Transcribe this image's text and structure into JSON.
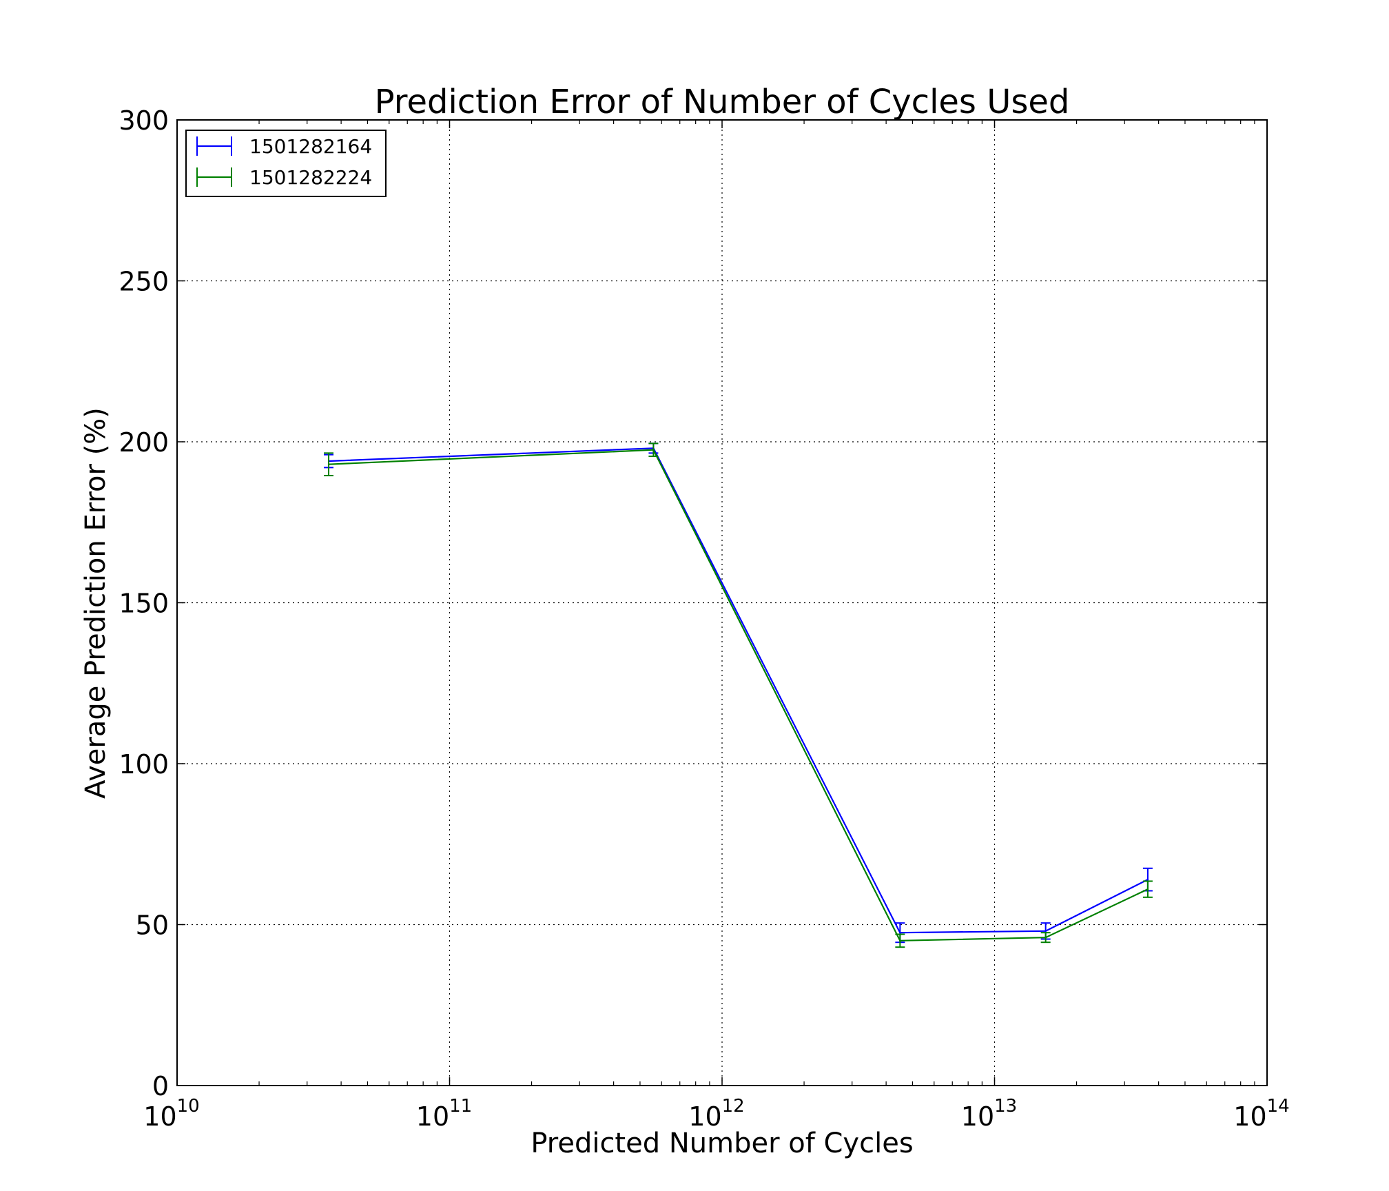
{
  "chart_data": {
    "type": "line",
    "title": "Prediction Error of Number of Cycles Used",
    "xlabel": "Predicted Number of Cycles",
    "ylabel": "Average Prediction Error (%)",
    "xscale": "log",
    "xlim": [
      10000000000,
      100000000000000
    ],
    "ylim": [
      0,
      300
    ],
    "x_ticks": [
      {
        "base": "10",
        "exp": "10",
        "value": 10000000000
      },
      {
        "base": "10",
        "exp": "11",
        "value": 100000000000
      },
      {
        "base": "10",
        "exp": "12",
        "value": 1000000000000
      },
      {
        "base": "10",
        "exp": "13",
        "value": 10000000000000
      },
      {
        "base": "10",
        "exp": "14",
        "value": 100000000000000
      }
    ],
    "y_ticks": [
      {
        "label": "0",
        "value": 0
      },
      {
        "label": "50",
        "value": 50
      },
      {
        "label": "100",
        "value": 100
      },
      {
        "label": "150",
        "value": 150
      },
      {
        "label": "200",
        "value": 200
      },
      {
        "label": "250",
        "value": 250
      },
      {
        "label": "300",
        "value": 300
      }
    ],
    "grid": true,
    "grid_style": "dotted",
    "legend_position": "top-left",
    "error_bars": true,
    "series": [
      {
        "name": "1501282164",
        "color": "#0000ff",
        "x": [
          36000000000,
          560000000000,
          4500000000000,
          15400000000000,
          36500000000000
        ],
        "y": [
          194,
          198,
          47.5,
          48,
          64
        ],
        "yerr": [
          2,
          1.5,
          3,
          2.5,
          3.5
        ]
      },
      {
        "name": "1501282224",
        "color": "#008000",
        "x": [
          36000000000,
          560000000000,
          4500000000000,
          15400000000000,
          36500000000000
        ],
        "y": [
          193,
          197.5,
          45,
          46,
          61
        ],
        "yerr": [
          3.5,
          2,
          2,
          1.5,
          2.5
        ]
      }
    ]
  }
}
